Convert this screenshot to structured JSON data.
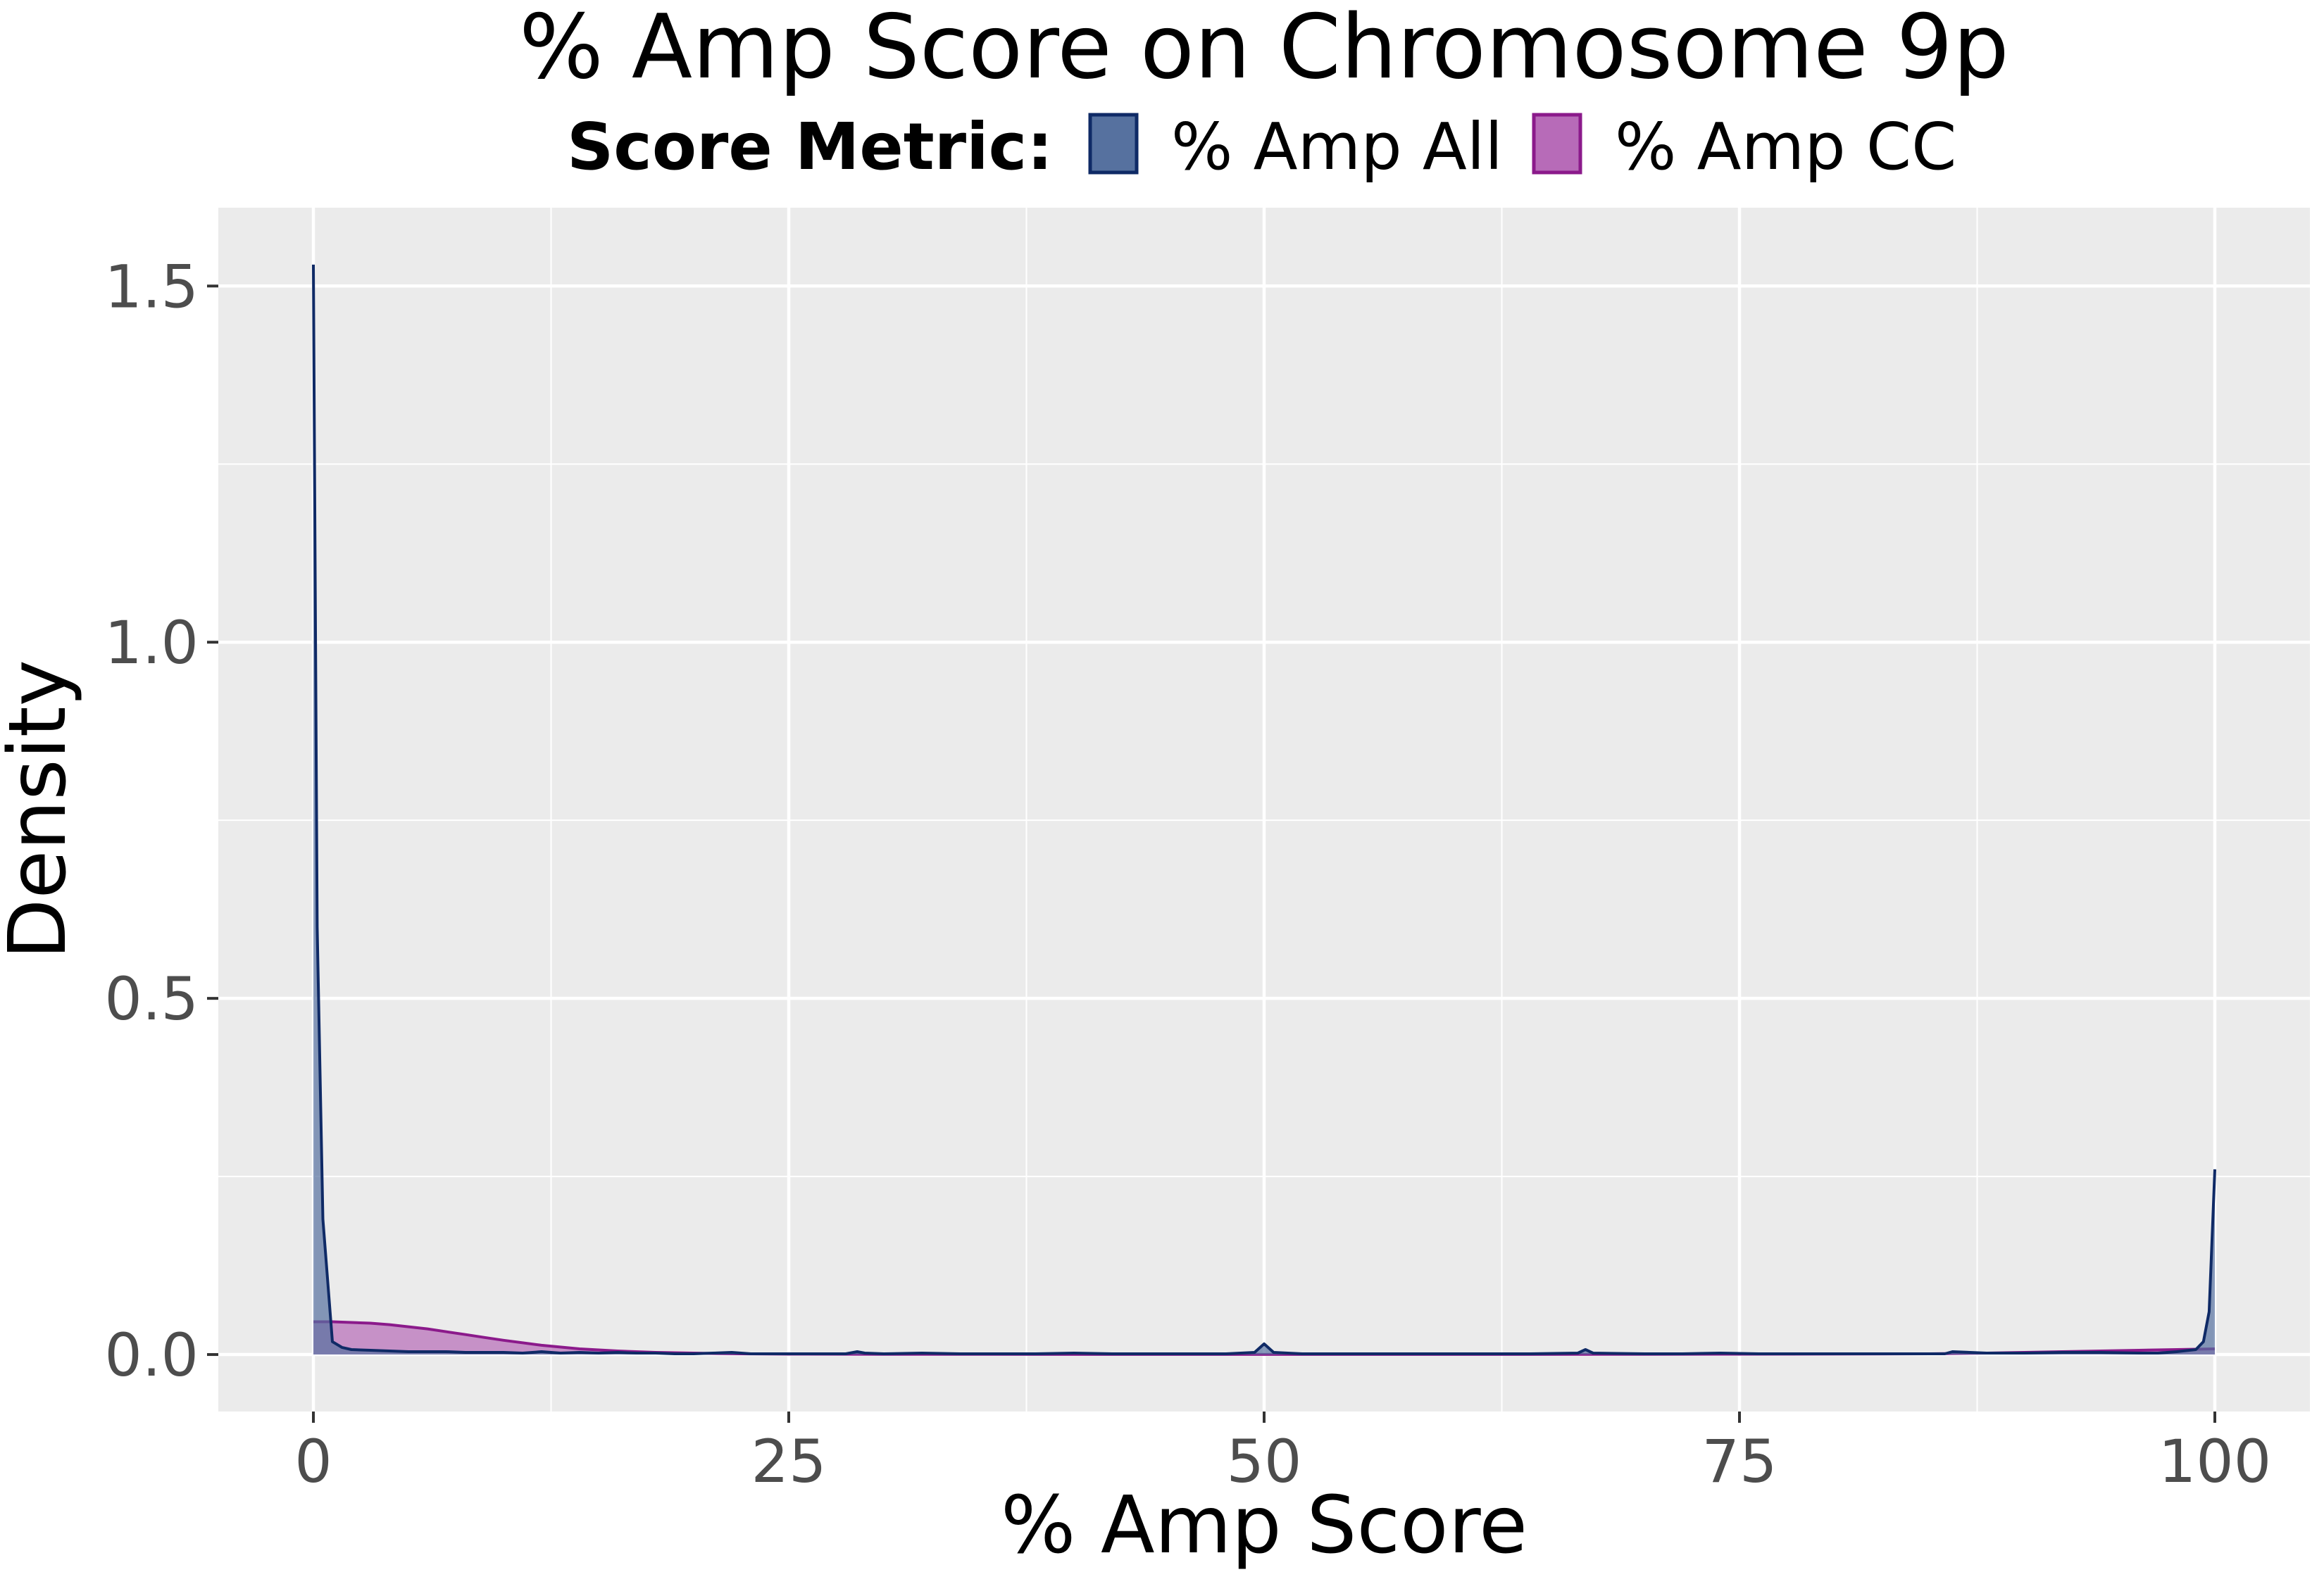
{
  "chart_data": {
    "type": "area",
    "title": "% Amp Score on Chromosome 9p",
    "xlabel": "% Amp Score",
    "ylabel": "Density",
    "xlim": [
      -5,
      105
    ],
    "ylim": [
      -0.08,
      1.61
    ],
    "x_ticks": [
      0,
      25,
      50,
      75,
      100
    ],
    "x_tick_labels": [
      "0",
      "25",
      "50",
      "75",
      "100"
    ],
    "y_ticks": [
      0,
      0.5,
      1.0,
      1.5
    ],
    "y_tick_labels": [
      "0.0",
      "0.5",
      "1.0",
      "1.5"
    ],
    "grid": true,
    "legend": {
      "title": "Score Metric:",
      "position": "top",
      "entries": [
        {
          "label": "% Amp All",
          "fill": "#56719f",
          "stroke": "#0f2a66"
        },
        {
          "label": "% Amp CC",
          "fill": "#b76bb8",
          "stroke": "#8b1a8b"
        }
      ]
    },
    "series": [
      {
        "name": "% Amp All",
        "fill": "#56719f",
        "stroke": "#0f2a66",
        "x": [
          0,
          0.2,
          0.5,
          1,
          1.5,
          2,
          3,
          4,
          5,
          6,
          7,
          8,
          9,
          10,
          11,
          12,
          13,
          14,
          15,
          16,
          17,
          18,
          19,
          20,
          21,
          22,
          23,
          24,
          25,
          26,
          27,
          28,
          28.6,
          29,
          30,
          32,
          34,
          36,
          38,
          40,
          42,
          44,
          46,
          48,
          49.5,
          50,
          50.5,
          52,
          55,
          58,
          61,
          64,
          66.5,
          66.9,
          67.3,
          70,
          72,
          74,
          76,
          78,
          80,
          82,
          84,
          85.8,
          86.2,
          88,
          90,
          92,
          94,
          96,
          97,
          98,
          99,
          99.4,
          99.7,
          100
        ],
        "y": [
          1.53,
          0.6,
          0.19,
          0.018,
          0.01,
          0.007,
          0.006,
          0.005,
          0.004,
          0.004,
          0.004,
          0.003,
          0.003,
          0.003,
          0.002,
          0.004,
          0.002,
          0.003,
          0.002,
          0.003,
          0.002,
          0.002,
          0.001,
          0.001,
          0.002,
          0.003,
          0.001,
          0.001,
          0.001,
          0.001,
          0.001,
          0.001,
          0.004,
          0.002,
          0.001,
          0.002,
          0.001,
          0.001,
          0.001,
          0.002,
          0.001,
          0.001,
          0.001,
          0.001,
          0.003,
          0.015,
          0.003,
          0.001,
          0.001,
          0.001,
          0.001,
          0.001,
          0.002,
          0.007,
          0.002,
          0.001,
          0.001,
          0.002,
          0.001,
          0.001,
          0.001,
          0.001,
          0.001,
          0.001,
          0.004,
          0.002,
          0.002,
          0.003,
          0.003,
          0.002,
          0.002,
          0.004,
          0.007,
          0.018,
          0.06,
          0.26
        ]
      },
      {
        "name": "% Amp CC",
        "fill": "#b76bb8",
        "stroke": "#8b1a8b",
        "x": [
          0,
          1,
          2,
          3,
          4,
          5,
          6,
          7,
          8,
          9,
          10,
          12,
          14,
          16,
          18,
          20,
          22,
          25,
          30,
          40,
          50,
          60,
          70,
          80,
          85,
          88,
          90,
          92,
          94,
          96,
          98,
          100
        ],
        "y": [
          0.046,
          0.046,
          0.045,
          0.044,
          0.042,
          0.039,
          0.036,
          0.032,
          0.028,
          0.024,
          0.02,
          0.013,
          0.008,
          0.005,
          0.003,
          0.002,
          0.001,
          0.0005,
          0.0003,
          0.0002,
          0.0002,
          0.0002,
          0.0003,
          0.0006,
          0.001,
          0.002,
          0.003,
          0.004,
          0.005,
          0.006,
          0.007,
          0.008
        ]
      }
    ]
  }
}
